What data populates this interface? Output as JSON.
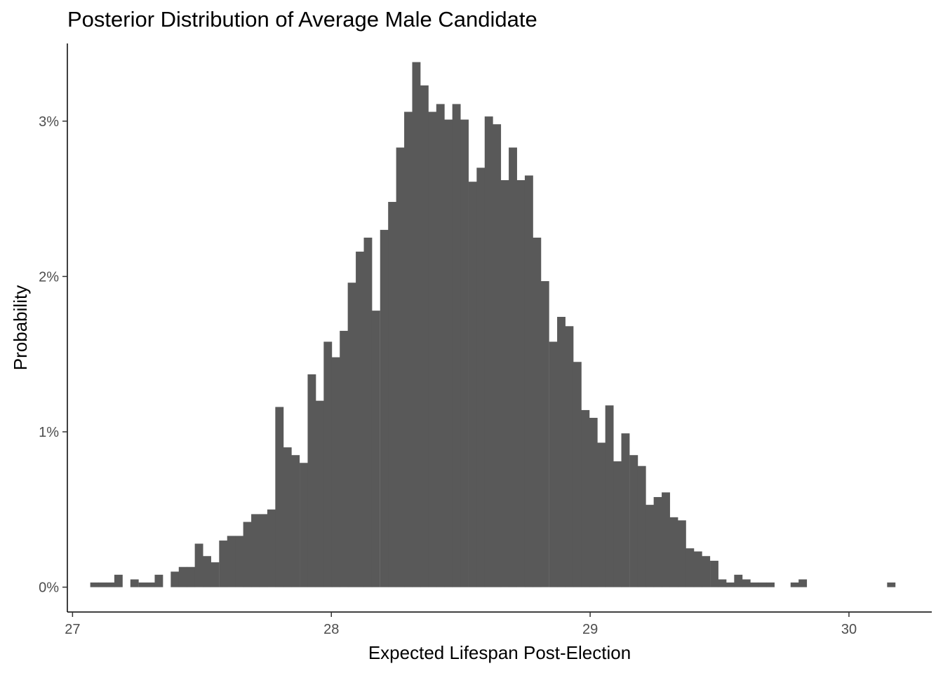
{
  "chart_data": {
    "type": "bar",
    "title": "Posterior Distribution of Average Male Candidate",
    "xlabel": "Expected Lifespan Post-Election",
    "ylabel": "Probability",
    "xlim": [
      26.98,
      30.32
    ],
    "ylim": [
      -0.0016,
      0.035
    ],
    "x_ticks": [
      27,
      28,
      29,
      30
    ],
    "x_tick_labels": [
      "27",
      "28",
      "29",
      "30"
    ],
    "y_ticks": [
      0,
      0.01,
      0.02,
      0.03
    ],
    "y_tick_labels": [
      "0%",
      "1%",
      "2%",
      "3%"
    ],
    "bin_width": 0.0311,
    "bar_color": "#595959",
    "grid": false,
    "bins": [
      {
        "x": 27.084,
        "y": 0.0003
      },
      {
        "x": 27.115,
        "y": 0.0003
      },
      {
        "x": 27.146,
        "y": 0.0003
      },
      {
        "x": 27.177,
        "y": 0.0008
      },
      {
        "x": 27.208,
        "y": 0.0
      },
      {
        "x": 27.239,
        "y": 0.0005
      },
      {
        "x": 27.271,
        "y": 0.0003
      },
      {
        "x": 27.302,
        "y": 0.0003
      },
      {
        "x": 27.333,
        "y": 0.0008
      },
      {
        "x": 27.364,
        "y": 0.0
      },
      {
        "x": 27.395,
        "y": 0.001
      },
      {
        "x": 27.426,
        "y": 0.0013
      },
      {
        "x": 27.457,
        "y": 0.0013
      },
      {
        "x": 27.488,
        "y": 0.0028
      },
      {
        "x": 27.519,
        "y": 0.002
      },
      {
        "x": 27.55,
        "y": 0.0016
      },
      {
        "x": 27.582,
        "y": 0.003
      },
      {
        "x": 27.613,
        "y": 0.0033
      },
      {
        "x": 27.644,
        "y": 0.0033
      },
      {
        "x": 27.675,
        "y": 0.0042
      },
      {
        "x": 27.706,
        "y": 0.0047
      },
      {
        "x": 27.737,
        "y": 0.0047
      },
      {
        "x": 27.768,
        "y": 0.005
      },
      {
        "x": 27.799,
        "y": 0.0116
      },
      {
        "x": 27.83,
        "y": 0.009
      },
      {
        "x": 27.861,
        "y": 0.0085
      },
      {
        "x": 27.893,
        "y": 0.008
      },
      {
        "x": 27.924,
        "y": 0.0137
      },
      {
        "x": 27.955,
        "y": 0.012
      },
      {
        "x": 27.986,
        "y": 0.0158
      },
      {
        "x": 28.017,
        "y": 0.0148
      },
      {
        "x": 28.048,
        "y": 0.0165
      },
      {
        "x": 28.079,
        "y": 0.0196
      },
      {
        "x": 28.11,
        "y": 0.0216
      },
      {
        "x": 28.141,
        "y": 0.0225
      },
      {
        "x": 28.172,
        "y": 0.0178
      },
      {
        "x": 28.204,
        "y": 0.023
      },
      {
        "x": 28.235,
        "y": 0.0248
      },
      {
        "x": 28.266,
        "y": 0.0283
      },
      {
        "x": 28.297,
        "y": 0.0306
      },
      {
        "x": 28.328,
        "y": 0.0338
      },
      {
        "x": 28.359,
        "y": 0.0323
      },
      {
        "x": 28.39,
        "y": 0.0306
      },
      {
        "x": 28.421,
        "y": 0.0311
      },
      {
        "x": 28.452,
        "y": 0.0301
      },
      {
        "x": 28.483,
        "y": 0.0311
      },
      {
        "x": 28.514,
        "y": 0.0301
      },
      {
        "x": 28.546,
        "y": 0.0261
      },
      {
        "x": 28.577,
        "y": 0.027
      },
      {
        "x": 28.608,
        "y": 0.0303
      },
      {
        "x": 28.639,
        "y": 0.0298
      },
      {
        "x": 28.67,
        "y": 0.0262
      },
      {
        "x": 28.701,
        "y": 0.0283
      },
      {
        "x": 28.732,
        "y": 0.0262
      },
      {
        "x": 28.763,
        "y": 0.0265
      },
      {
        "x": 28.794,
        "y": 0.0225
      },
      {
        "x": 28.825,
        "y": 0.0197
      },
      {
        "x": 28.857,
        "y": 0.0158
      },
      {
        "x": 28.888,
        "y": 0.0174
      },
      {
        "x": 28.919,
        "y": 0.0168
      },
      {
        "x": 28.95,
        "y": 0.0145
      },
      {
        "x": 28.981,
        "y": 0.0114
      },
      {
        "x": 29.012,
        "y": 0.0109
      },
      {
        "x": 29.043,
        "y": 0.0093
      },
      {
        "x": 29.074,
        "y": 0.0117
      },
      {
        "x": 29.105,
        "y": 0.0081
      },
      {
        "x": 29.136,
        "y": 0.0099
      },
      {
        "x": 29.168,
        "y": 0.0085
      },
      {
        "x": 29.199,
        "y": 0.0078
      },
      {
        "x": 29.23,
        "y": 0.0053
      },
      {
        "x": 29.261,
        "y": 0.0058
      },
      {
        "x": 29.292,
        "y": 0.0061
      },
      {
        "x": 29.323,
        "y": 0.0045
      },
      {
        "x": 29.354,
        "y": 0.0043
      },
      {
        "x": 29.385,
        "y": 0.0025
      },
      {
        "x": 29.416,
        "y": 0.0023
      },
      {
        "x": 29.447,
        "y": 0.002
      },
      {
        "x": 29.479,
        "y": 0.0017
      },
      {
        "x": 29.51,
        "y": 0.0005
      },
      {
        "x": 29.541,
        "y": 0.0003
      },
      {
        "x": 29.572,
        "y": 0.0008
      },
      {
        "x": 29.603,
        "y": 0.0005
      },
      {
        "x": 29.634,
        "y": 0.0003
      },
      {
        "x": 29.665,
        "y": 0.0003
      },
      {
        "x": 29.696,
        "y": 0.0003
      },
      {
        "x": 29.727,
        "y": 0.0
      },
      {
        "x": 29.758,
        "y": 0.0
      },
      {
        "x": 29.79,
        "y": 0.0003
      },
      {
        "x": 29.821,
        "y": 0.0005
      },
      {
        "x": 29.852,
        "y": 0.0
      },
      {
        "x": 29.883,
        "y": 0.0
      },
      {
        "x": 29.914,
        "y": 0.0
      },
      {
        "x": 29.945,
        "y": 0.0
      },
      {
        "x": 29.976,
        "y": 0.0
      },
      {
        "x": 30.007,
        "y": 0.0
      },
      {
        "x": 30.038,
        "y": 0.0
      },
      {
        "x": 30.069,
        "y": 0.0
      },
      {
        "x": 30.101,
        "y": 0.0
      },
      {
        "x": 30.132,
        "y": 0.0
      },
      {
        "x": 30.163,
        "y": 0.0003
      }
    ]
  }
}
